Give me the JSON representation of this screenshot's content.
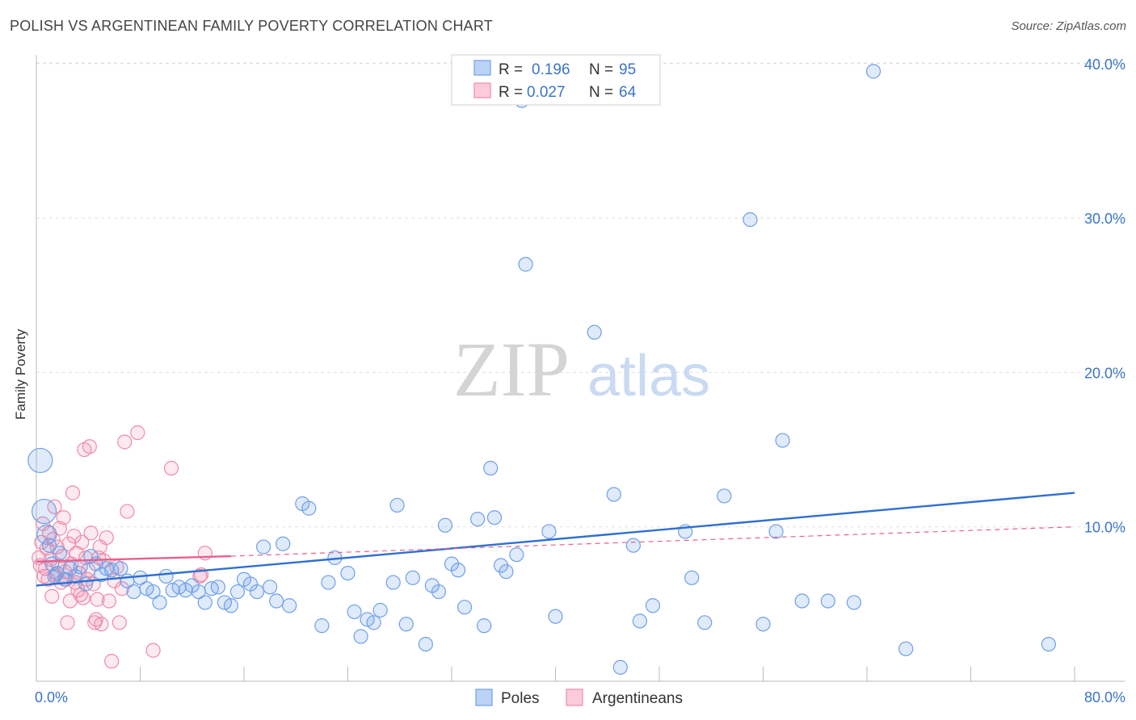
{
  "header": {
    "title": "POLISH VS ARGENTINEAN FAMILY POVERTY CORRELATION CHART",
    "source": "Source: ZipAtlas.com"
  },
  "watermark": {
    "zip": "ZIP",
    "atlas": "atlas"
  },
  "colors": {
    "poles": "#6fa0e8",
    "poles_line": "#2f6fd0",
    "argentineans": "#f08aab",
    "argentineans_line": "#e8608a",
    "axis_text": "#3a74c8",
    "grid": "#e0e0e0"
  },
  "legend_top": {
    "rows": [
      {
        "r_label": "R =",
        "r_value": "0.196",
        "n_label": "N =",
        "n_value": "95"
      },
      {
        "r_label": "R =",
        "r_value": "0.027",
        "n_label": "N =",
        "n_value": "64"
      }
    ]
  },
  "chart_data": {
    "type": "scatter",
    "title": "POLISH VS ARGENTINEAN FAMILY POVERTY CORRELATION CHART",
    "xlabel": "",
    "ylabel": "Family Poverty",
    "xlim": [
      0,
      80
    ],
    "ylim": [
      0,
      41
    ],
    "x_tick_labels": [
      "0.0%",
      "80.0%"
    ],
    "y_ticks": [
      10,
      20,
      30,
      40
    ],
    "y_tick_labels": [
      "10.0%",
      "20.0%",
      "30.0%",
      "40.0%"
    ],
    "grid": true,
    "legend_position": "bottom-center",
    "series": [
      {
        "name": "Poles",
        "points": [
          [
            0.3,
            14.3,
            3
          ],
          [
            0.6,
            11.0,
            3
          ],
          [
            0.8,
            9.5,
            2
          ],
          [
            1.0,
            8.8,
            1
          ],
          [
            1.2,
            7.6,
            1
          ],
          [
            1.4,
            6.8,
            1
          ],
          [
            1.6,
            7.0,
            1
          ],
          [
            1.8,
            8.3,
            1
          ],
          [
            2.2,
            6.6,
            1
          ],
          [
            2.6,
            7.3,
            1
          ],
          [
            3.0,
            6.8,
            1
          ],
          [
            3.4,
            7.4,
            1
          ],
          [
            3.8,
            6.3,
            1
          ],
          [
            4.2,
            8.1,
            1
          ],
          [
            4.6,
            7.6,
            1
          ],
          [
            5.0,
            6.9,
            1
          ],
          [
            5.4,
            7.3,
            1
          ],
          [
            5.8,
            7.2,
            1
          ],
          [
            6.5,
            7.3,
            1
          ],
          [
            7.0,
            6.5,
            1
          ],
          [
            7.5,
            5.8,
            1
          ],
          [
            8.0,
            6.7,
            1
          ],
          [
            8.5,
            6.0,
            1
          ],
          [
            9.0,
            5.8,
            1
          ],
          [
            9.5,
            5.1,
            1
          ],
          [
            10.0,
            6.8,
            1
          ],
          [
            10.5,
            5.9,
            1
          ],
          [
            11.0,
            6.1,
            1
          ],
          [
            11.5,
            5.9,
            1
          ],
          [
            12.0,
            6.2,
            1
          ],
          [
            12.5,
            5.8,
            1
          ],
          [
            13.0,
            5.1,
            1
          ],
          [
            13.5,
            6.0,
            1
          ],
          [
            14.0,
            6.1,
            1
          ],
          [
            14.5,
            5.1,
            1
          ],
          [
            15.0,
            4.9,
            1
          ],
          [
            15.5,
            5.8,
            1
          ],
          [
            16.0,
            6.6,
            1
          ],
          [
            16.5,
            6.3,
            1
          ],
          [
            17.0,
            5.8,
            1
          ],
          [
            17.5,
            8.7,
            1
          ],
          [
            18.0,
            6.1,
            1
          ],
          [
            18.5,
            5.2,
            1
          ],
          [
            19.0,
            8.9,
            1
          ],
          [
            19.5,
            4.9,
            1
          ],
          [
            20.5,
            11.5,
            1
          ],
          [
            21.0,
            11.2,
            1
          ],
          [
            22.0,
            3.6,
            1
          ],
          [
            22.5,
            6.4,
            1
          ],
          [
            23.0,
            8.0,
            1
          ],
          [
            24.0,
            7.0,
            1
          ],
          [
            24.5,
            4.5,
            1
          ],
          [
            25.0,
            2.9,
            1
          ],
          [
            25.5,
            4.0,
            1
          ],
          [
            26.0,
            3.8,
            1
          ],
          [
            26.5,
            4.6,
            1
          ],
          [
            27.5,
            6.4,
            1
          ],
          [
            27.8,
            11.4,
            1
          ],
          [
            28.5,
            3.7,
            1
          ],
          [
            29.0,
            6.7,
            1
          ],
          [
            30.0,
            2.4,
            1
          ],
          [
            30.5,
            6.2,
            1
          ],
          [
            31.0,
            5.8,
            1
          ],
          [
            31.5,
            10.1,
            1
          ],
          [
            32.0,
            7.6,
            1
          ],
          [
            32.5,
            7.2,
            1
          ],
          [
            33.0,
            4.8,
            1
          ],
          [
            34.0,
            10.5,
            1
          ],
          [
            34.5,
            3.6,
            1
          ],
          [
            35.0,
            13.8,
            1
          ],
          [
            35.3,
            10.6,
            1
          ],
          [
            35.8,
            7.5,
            1
          ],
          [
            36.2,
            7.1,
            1
          ],
          [
            37.0,
            8.2,
            1
          ],
          [
            37.4,
            37.6,
            1
          ],
          [
            37.7,
            27.0,
            1
          ],
          [
            39.5,
            9.7,
            1
          ],
          [
            40.0,
            4.2,
            1
          ],
          [
            43.0,
            22.6,
            1
          ],
          [
            44.5,
            12.1,
            1
          ],
          [
            45.0,
            0.9,
            1
          ],
          [
            46.0,
            8.8,
            1
          ],
          [
            46.5,
            3.9,
            1
          ],
          [
            47.5,
            4.9,
            1
          ],
          [
            50.0,
            9.7,
            1
          ],
          [
            50.5,
            6.7,
            1
          ],
          [
            51.5,
            3.8,
            1
          ],
          [
            53.0,
            12.0,
            1
          ],
          [
            55.0,
            29.9,
            1
          ],
          [
            56.0,
            3.7,
            1
          ],
          [
            57.0,
            9.7,
            1
          ],
          [
            57.5,
            15.6,
            1
          ],
          [
            59.0,
            5.2,
            1
          ],
          [
            61.0,
            5.2,
            1
          ],
          [
            63.0,
            5.1,
            1
          ],
          [
            64.5,
            39.5,
            1
          ],
          [
            67.0,
            2.1,
            1
          ],
          [
            78.0,
            2.4,
            1
          ]
        ],
        "trend": {
          "x": [
            0,
            80
          ],
          "y": [
            6.2,
            12.2
          ]
        }
      },
      {
        "name": "Argentineans",
        "points": [
          [
            0.2,
            8.0,
            1
          ],
          [
            0.3,
            7.5,
            1
          ],
          [
            0.4,
            9.0,
            1
          ],
          [
            0.5,
            10.2,
            1
          ],
          [
            0.6,
            6.8,
            1
          ],
          [
            0.7,
            7.3,
            1
          ],
          [
            0.8,
            8.6,
            1
          ],
          [
            0.9,
            6.6,
            1
          ],
          [
            1.0,
            9.6,
            1
          ],
          [
            1.1,
            7.9,
            1
          ],
          [
            1.2,
            5.5,
            1
          ],
          [
            1.3,
            9.2,
            1
          ],
          [
            1.4,
            11.3,
            1
          ],
          [
            1.5,
            6.9,
            1
          ],
          [
            1.6,
            8.7,
            1
          ],
          [
            1.7,
            7.5,
            1
          ],
          [
            1.8,
            9.9,
            1
          ],
          [
            1.9,
            6.4,
            1
          ],
          [
            2.0,
            8.1,
            1
          ],
          [
            2.1,
            10.6,
            1
          ],
          [
            2.2,
            7.1,
            1
          ],
          [
            2.3,
            6.6,
            1
          ],
          [
            2.4,
            3.8,
            1
          ],
          [
            2.5,
            8.9,
            1
          ],
          [
            2.6,
            5.2,
            1
          ],
          [
            2.7,
            7.6,
            1
          ],
          [
            2.8,
            12.2,
            1
          ],
          [
            2.9,
            9.4,
            1
          ],
          [
            3.0,
            6.4,
            1
          ],
          [
            3.1,
            8.3,
            1
          ],
          [
            3.2,
            5.9,
            1
          ],
          [
            3.3,
            7.0,
            1
          ],
          [
            3.4,
            5.6,
            1
          ],
          [
            3.5,
            9.0,
            1
          ],
          [
            3.6,
            5.4,
            1
          ],
          [
            3.7,
            15.0,
            1
          ],
          [
            3.8,
            8.0,
            1
          ],
          [
            3.9,
            6.6,
            1
          ],
          [
            4.0,
            7.2,
            1
          ],
          [
            4.1,
            15.2,
            1
          ],
          [
            4.2,
            9.6,
            1
          ],
          [
            4.4,
            6.3,
            1
          ],
          [
            4.5,
            3.8,
            1
          ],
          [
            4.6,
            4.0,
            1
          ],
          [
            4.7,
            5.3,
            1
          ],
          [
            4.8,
            8.0,
            1
          ],
          [
            4.9,
            8.7,
            1
          ],
          [
            5.0,
            3.7,
            1
          ],
          [
            5.2,
            7.8,
            1
          ],
          [
            5.4,
            9.3,
            1
          ],
          [
            5.6,
            5.2,
            1
          ],
          [
            5.8,
            1.3,
            1
          ],
          [
            6.0,
            6.5,
            1
          ],
          [
            6.2,
            7.4,
            1
          ],
          [
            6.4,
            3.8,
            1
          ],
          [
            6.6,
            6.0,
            1
          ],
          [
            6.8,
            15.5,
            1
          ],
          [
            7.0,
            11.0,
            1
          ],
          [
            7.8,
            16.1,
            1
          ],
          [
            9.0,
            2.0,
            1
          ],
          [
            10.4,
            13.8,
            1
          ],
          [
            12.6,
            6.8,
            1
          ],
          [
            12.7,
            6.9,
            1
          ],
          [
            13.0,
            8.3,
            1
          ]
        ],
        "trend_solid": {
          "x": [
            0,
            15
          ],
          "y": [
            7.75,
            8.1
          ]
        },
        "trend_dashed": {
          "x": [
            15,
            80
          ],
          "y": [
            8.1,
            10.0
          ]
        }
      }
    ]
  },
  "legend_bottom": {
    "items": [
      {
        "label": "Poles"
      },
      {
        "label": "Argentineans"
      }
    ]
  }
}
